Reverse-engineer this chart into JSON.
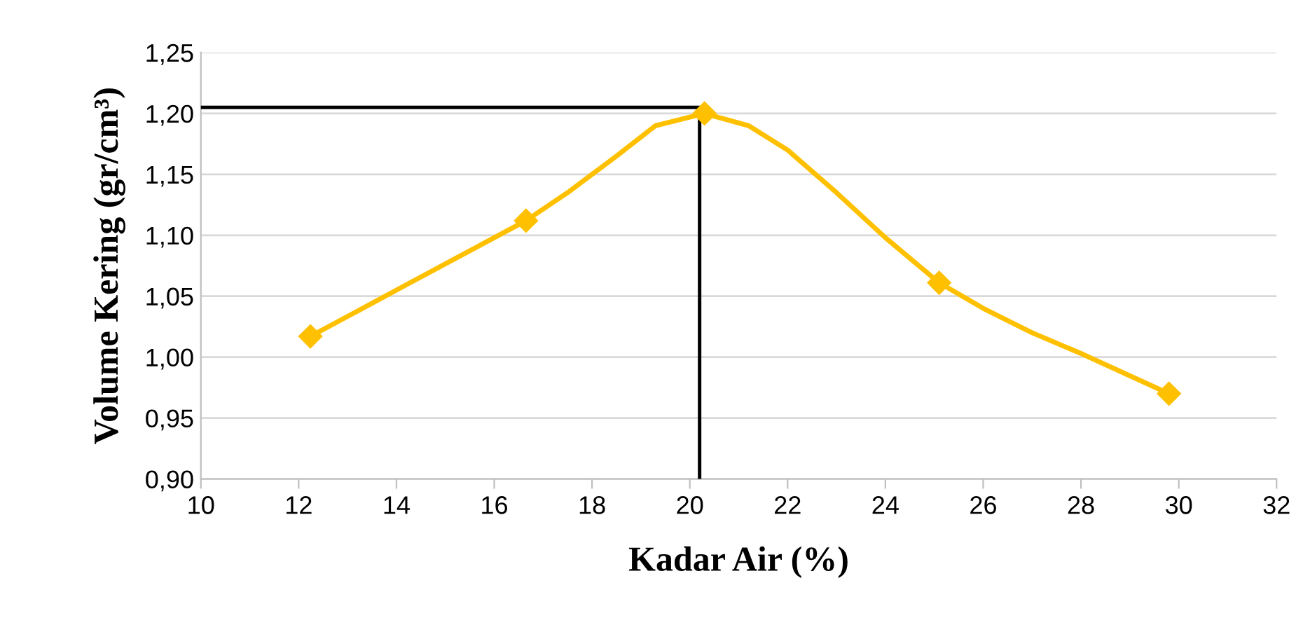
{
  "chart_data": {
    "type": "line",
    "xlabel": "Kadar Air (%)",
    "ylabel": "Volume Kering (gr/cm³)",
    "xlim": [
      10,
      32
    ],
    "xticks": [
      10,
      12,
      14,
      16,
      18,
      20,
      22,
      24,
      26,
      28,
      30,
      32
    ],
    "ylim": [
      0.9,
      1.25
    ],
    "yticks": [
      {
        "value": 0.9,
        "label": "0,90"
      },
      {
        "value": 0.95,
        "label": "0,95"
      },
      {
        "value": 1.0,
        "label": "1,00"
      },
      {
        "value": 1.05,
        "label": "1,05"
      },
      {
        "value": 1.1,
        "label": "1,10"
      },
      {
        "value": 1.15,
        "label": "1,15"
      },
      {
        "value": 1.2,
        "label": "1,20"
      },
      {
        "value": 1.25,
        "label": "1,25"
      }
    ],
    "grid": "y",
    "legend": false,
    "series": [
      {
        "color": "#ffc000",
        "marker": "none",
        "x": [
          12.24,
          14,
          16.65,
          17.5,
          18.5,
          19.3,
          20.3,
          21.2,
          22,
          23,
          24,
          25.1,
          26,
          27,
          28,
          29.8
        ],
        "values": [
          1.017,
          1.055,
          1.112,
          1.135,
          1.165,
          1.19,
          1.2,
          1.19,
          1.17,
          1.135,
          1.098,
          1.061,
          1.04,
          1.02,
          1.003,
          0.97
        ]
      },
      {
        "type": "scatter",
        "color": "#ffc000",
        "marker": "diamond",
        "x": [
          12.24,
          16.65,
          20.3,
          25.1,
          29.8
        ],
        "values": [
          1.017,
          1.112,
          1.2,
          1.061,
          0.97
        ]
      },
      {
        "color": "#000000",
        "marker": "none",
        "x": [
          10,
          20.2,
          20.2
        ],
        "values": [
          1.205,
          1.205,
          0.9
        ]
      }
    ]
  }
}
